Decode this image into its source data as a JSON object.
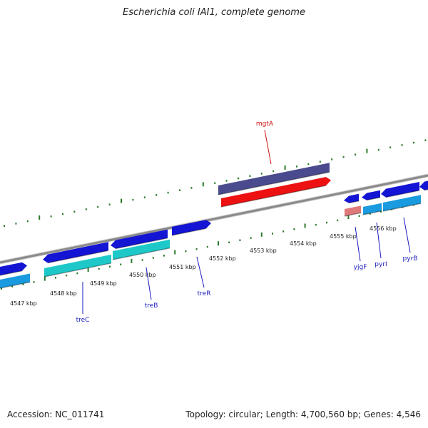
{
  "title": "Escherichia coli IAI1, complete genome",
  "footer": {
    "accession": "Accession: NC_011741",
    "summary": "Topology: circular; Length: 4,700,560 bp; Genes: 4,546"
  },
  "colors": {
    "backbone": "#8a8a8a",
    "tick": "#2a7a2a",
    "cds_dark": "#1414d4",
    "cds_light": "#1a9adf",
    "cds_cyan": "#1ec8c8",
    "rna_red": "#ee1111",
    "rna_purple": "#4a4a8e",
    "pink": "#e07a7a",
    "label_blue": "#1b1bbf",
    "label_red": "#cc1111"
  },
  "ticks": [
    {
      "label": "4547 kbp"
    },
    {
      "label": "4548 kbp"
    },
    {
      "label": "4549 kbp"
    },
    {
      "label": "4550 kbp"
    },
    {
      "label": "4551 kbp"
    },
    {
      "label": "4552 kbp"
    },
    {
      "label": "4553 kbp"
    },
    {
      "label": "4554 kbp"
    },
    {
      "label": "4555 kbp"
    },
    {
      "label": "4556 kbp"
    }
  ],
  "genes": [
    {
      "label": "mgtA",
      "color": "label_red"
    },
    {
      "label": "treC",
      "color": "label_blue"
    },
    {
      "label": "treB",
      "color": "label_blue"
    },
    {
      "label": "treR",
      "color": "label_blue"
    },
    {
      "label": "yjgF",
      "color": "label_blue"
    },
    {
      "label": "pyrI",
      "color": "label_blue"
    },
    {
      "label": "pyrB",
      "color": "label_blue"
    }
  ]
}
